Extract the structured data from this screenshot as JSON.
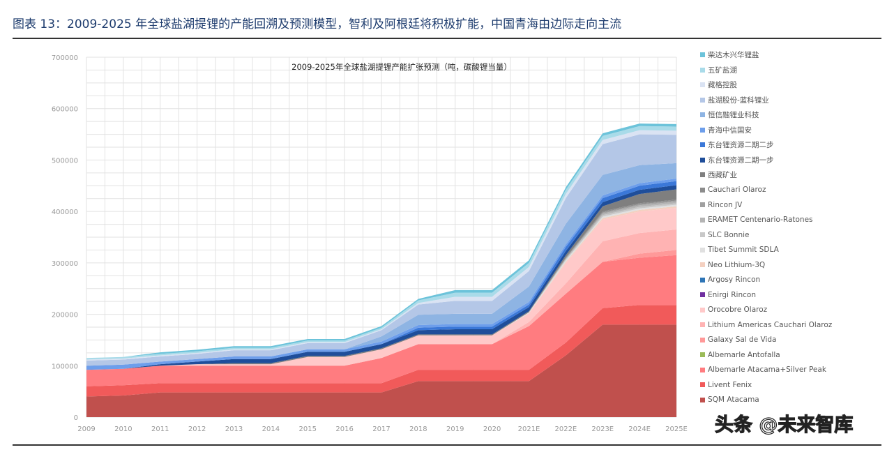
{
  "header": "图表 13：2009-2025 年全球盐湖提锂的产能回溯及预测模型，智利及阿根廷将积极扩能，中国青海由边际走向主流",
  "watermark": "头条 @未来智库",
  "chart_data": {
    "type": "area",
    "stacked": true,
    "title": "2009-2025年全球盐湖提锂产能扩张预测（吨，碳酸锂当量）",
    "xlabel": "",
    "ylabel": "",
    "ylim": [
      0,
      700000
    ],
    "yticks": [
      "0",
      "100000",
      "200000",
      "300000",
      "400000",
      "500000",
      "600000",
      "700000"
    ],
    "categories": [
      "2009",
      "2010",
      "2011",
      "2012",
      "2013",
      "2014",
      "2015",
      "2016",
      "2017",
      "2018",
      "2019",
      "2020",
      "2021E",
      "2022E",
      "2023E",
      "2024E",
      "2025E"
    ],
    "grid": true,
    "legend_position": "right",
    "series": [
      {
        "name": "SQM Atacama",
        "color": "#c0504d",
        "values": [
          40000,
          42000,
          48000,
          48000,
          48000,
          48000,
          48000,
          48000,
          48000,
          70000,
          70000,
          70000,
          70000,
          120000,
          180000,
          180000,
          180000
        ]
      },
      {
        "name": "Livent Fenix",
        "color": "#f15a5a",
        "values": [
          20000,
          20000,
          18000,
          18000,
          18000,
          18000,
          18000,
          18000,
          18000,
          22000,
          22000,
          22000,
          22000,
          25000,
          32000,
          38000,
          38000
        ]
      },
      {
        "name": "Albemarle Atacama+Silver Peak",
        "color": "#ff7c80",
        "values": [
          32000,
          32000,
          34000,
          34000,
          34000,
          34000,
          34000,
          34000,
          49000,
          50000,
          50000,
          50000,
          85000,
          95000,
          90000,
          92000,
          97000
        ]
      },
      {
        "name": "Albemarle Antofalla",
        "color": "#9bbb59",
        "values": [
          0,
          0,
          0,
          0,
          0,
          0,
          0,
          0,
          0,
          0,
          0,
          0,
          0,
          0,
          0,
          0,
          0
        ]
      },
      {
        "name": "Galaxy Sal de Vida",
        "color": "#ff9999",
        "values": [
          0,
          0,
          0,
          0,
          0,
          0,
          0,
          0,
          0,
          0,
          0,
          0,
          0,
          0,
          0,
          8000,
          10000
        ]
      },
      {
        "name": "Lithium Americas Cauchari Olaroz",
        "color": "#ffb3b3",
        "values": [
          0,
          0,
          0,
          0,
          0,
          0,
          0,
          0,
          0,
          0,
          0,
          0,
          8000,
          20000,
          40000,
          40000,
          40000
        ]
      },
      {
        "name": "Orocobre Olaroz",
        "color": "#ffc9c9",
        "values": [
          0,
          0,
          0,
          3000,
          3000,
          3000,
          17000,
          17000,
          17000,
          17000,
          17000,
          17000,
          17000,
          40000,
          42000,
          42000,
          42000
        ]
      },
      {
        "name": "Enirgi Rincon",
        "color": "#7030a0",
        "values": [
          0,
          0,
          0,
          0,
          0,
          0,
          0,
          0,
          0,
          0,
          0,
          0,
          0,
          0,
          0,
          0,
          0
        ]
      },
      {
        "name": "Argosy Rincon",
        "color": "#2e75b6",
        "values": [
          0,
          0,
          0,
          0,
          0,
          0,
          0,
          0,
          0,
          0,
          0,
          0,
          0,
          0,
          0,
          0,
          0
        ]
      },
      {
        "name": "Neo Lithium-3Q",
        "color": "#f4d0c0",
        "values": [
          0,
          0,
          0,
          0,
          0,
          0,
          0,
          0,
          0,
          0,
          0,
          0,
          0,
          2000,
          3000,
          3000,
          3000
        ]
      },
      {
        "name": "Tibet Summit SDLA",
        "color": "#e0e0e0",
        "values": [
          0,
          0,
          0,
          0,
          0,
          0,
          0,
          0,
          0,
          0,
          0,
          0,
          2000,
          3000,
          3000,
          3000,
          3000
        ]
      },
      {
        "name": "SLC Bonnie",
        "color": "#c8c8c8",
        "values": [
          0,
          0,
          0,
          0,
          0,
          0,
          0,
          0,
          0,
          0,
          0,
          0,
          0,
          2000,
          3000,
          3000,
          3000
        ]
      },
      {
        "name": "ERAMET Centenario-Ratones",
        "color": "#b4b4b4",
        "values": [
          0,
          0,
          0,
          0,
          0,
          0,
          0,
          0,
          0,
          0,
          0,
          0,
          0,
          2000,
          3000,
          3000,
          3000
        ]
      },
      {
        "name": "Rincon JV",
        "color": "#a0a0a0",
        "values": [
          0,
          0,
          0,
          0,
          0,
          0,
          0,
          0,
          0,
          0,
          0,
          0,
          0,
          0,
          2000,
          2000,
          2000
        ]
      },
      {
        "name": "Cauchari Olaroz",
        "color": "#8c8c8c",
        "values": [
          0,
          0,
          0,
          0,
          0,
          0,
          0,
          0,
          0,
          0,
          0,
          0,
          0,
          2000,
          2000,
          2000,
          2000
        ]
      },
      {
        "name": "西藏矿业",
        "color": "#7f7f7f",
        "values": [
          0,
          0,
          0,
          0,
          2000,
          2000,
          2000,
          2000,
          2000,
          2000,
          2000,
          2000,
          2000,
          4000,
          10000,
          18000,
          20000
        ]
      },
      {
        "name": "东台锂资源二期一步",
        "color": "#1f4e9a",
        "values": [
          0,
          0,
          3000,
          5000,
          8000,
          8000,
          8000,
          8000,
          8000,
          8000,
          10000,
          10000,
          8000,
          8000,
          8000,
          8000,
          8000
        ]
      },
      {
        "name": "东台锂资源二期二步",
        "color": "#3b78d8",
        "values": [
          0,
          0,
          0,
          0,
          0,
          0,
          0,
          0,
          0,
          5000,
          5000,
          5000,
          5000,
          8000,
          8000,
          8000,
          8000
        ]
      },
      {
        "name": "青海中信国安",
        "color": "#6d9eeb",
        "values": [
          8000,
          8000,
          5000,
          5000,
          5000,
          5000,
          5000,
          5000,
          5000,
          5000,
          5000,
          5000,
          5000,
          5000,
          5000,
          5000,
          5000
        ]
      },
      {
        "name": "恒信融锂业科技",
        "color": "#8eb4e3",
        "values": [
          0,
          0,
          0,
          0,
          0,
          0,
          0,
          0,
          10000,
          20000,
          20000,
          20000,
          30000,
          40000,
          40000,
          35000,
          30000
        ]
      },
      {
        "name": "盐湖股份-蓝科锂业",
        "color": "#b4c7e7",
        "values": [
          10000,
          10000,
          10000,
          10000,
          12000,
          12000,
          12000,
          12000,
          12000,
          20000,
          25000,
          25000,
          30000,
          50000,
          60000,
          60000,
          55000
        ]
      },
      {
        "name": "藏格控股",
        "color": "#dae3f3",
        "values": [
          2000,
          2000,
          2000,
          2000,
          2000,
          2000,
          2000,
          2000,
          2000,
          3000,
          8000,
          8000,
          8000,
          8000,
          8000,
          8000,
          8000
        ]
      },
      {
        "name": "五矿盐湖",
        "color": "#a9dbe9",
        "values": [
          3000,
          3000,
          3000,
          3000,
          3000,
          3000,
          3000,
          3000,
          3000,
          5000,
          8000,
          8000,
          8000,
          8000,
          8000,
          8000,
          8000
        ]
      },
      {
        "name": "柴达木兴华锂盐",
        "color": "#6cc3da",
        "values": [
          0,
          0,
          3000,
          3000,
          3000,
          3000,
          3000,
          3000,
          3000,
          3000,
          5000,
          5000,
          5000,
          5000,
          5000,
          5000,
          5000
        ]
      }
    ]
  }
}
